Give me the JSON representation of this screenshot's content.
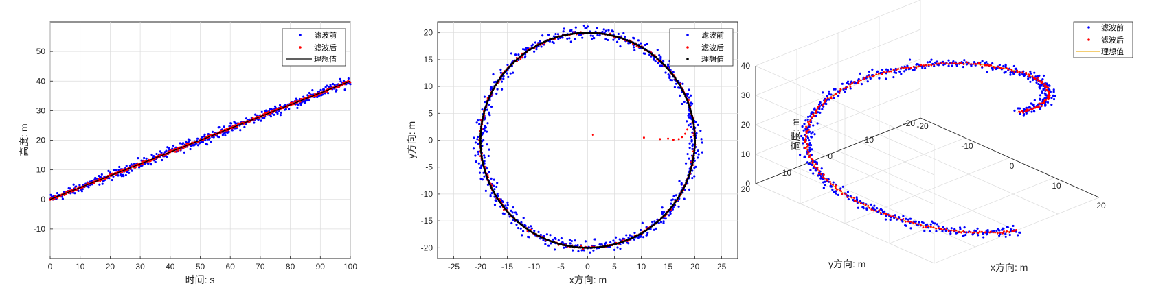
{
  "colors": {
    "before": "#0000ff",
    "after": "#ff0000",
    "ideal_line": "#000000",
    "ideal_3d": "#edb120",
    "axis": "#262626",
    "grid": "#dcdcdc"
  },
  "chart_data": [
    {
      "type": "scatter",
      "xlabel": "时间: s",
      "ylabel": "高度: m",
      "xlim": [
        0,
        100
      ],
      "ylim": [
        -20,
        60
      ],
      "xticks": [
        0,
        10,
        20,
        30,
        40,
        50,
        60,
        70,
        80,
        90,
        100
      ],
      "yticks": [
        -10,
        0,
        10,
        20,
        30,
        40,
        50
      ],
      "grid": true,
      "legend_position": "top-right",
      "legend": [
        "滤波前",
        "滤波后",
        "理想值"
      ],
      "series": [
        {
          "name": "滤波前",
          "style": "points",
          "color": "#0000ff",
          "x_range": [
            0,
            100
          ],
          "line": "y = 0.4·t",
          "noise_amplitude": 2.5,
          "count": 500
        },
        {
          "name": "滤波后",
          "style": "points",
          "color": "#ff0000",
          "x_range": [
            0,
            100
          ],
          "line": "y = 0.4·t",
          "noise_amplitude": 0.7,
          "count": 500
        },
        {
          "name": "理想值",
          "style": "line",
          "color": "#000000",
          "x": [
            0,
            100
          ],
          "y": [
            0,
            40
          ]
        }
      ]
    },
    {
      "type": "scatter",
      "xlabel": "x方向: m",
      "ylabel": "y方向: m",
      "xlim": [
        -28,
        28
      ],
      "ylim": [
        -22,
        22
      ],
      "xticks": [
        -25,
        -20,
        -15,
        -10,
        -5,
        0,
        5,
        10,
        15,
        20,
        25
      ],
      "yticks": [
        -20,
        -15,
        -10,
        -5,
        0,
        5,
        10,
        15,
        20
      ],
      "grid": true,
      "legend_position": "top-right",
      "legend": [
        "滤波前",
        "滤波后",
        "理想值"
      ],
      "series": [
        {
          "name": "滤波前",
          "style": "points",
          "color": "#0000ff",
          "shape": "circle",
          "radius": 20,
          "noise_amplitude": 1.8,
          "count": 600
        },
        {
          "name": "滤波后",
          "style": "points",
          "color": "#ff0000",
          "shape": "circle",
          "radius": 20,
          "noise_amplitude": 0.4,
          "count": 300,
          "transient_points": [
            [
              1,
              1
            ],
            [
              10.5,
              0.5
            ],
            [
              13.5,
              0.2
            ],
            [
              15,
              0.3
            ],
            [
              16,
              0.1
            ],
            [
              17,
              0.2
            ],
            [
              17.6,
              0.6
            ],
            [
              18.2,
              1.2
            ],
            [
              18.6,
              2.0
            ]
          ]
        },
        {
          "name": "理想值",
          "style": "points",
          "color": "#000000",
          "shape": "circle",
          "radius": 20,
          "count": 400
        }
      ]
    },
    {
      "type": "scatter3d",
      "xlabel": "x方向: m",
      "ylabel": "y方向: m",
      "zlabel": "高度: m",
      "xlim": [
        -20,
        20
      ],
      "ylim": [
        -20,
        20
      ],
      "zlim": [
        0,
        40
      ],
      "xticks": [
        -20,
        -10,
        0,
        10,
        20
      ],
      "yticks": [
        -20,
        -10,
        0,
        10,
        20
      ],
      "zticks": [
        0,
        10,
        20,
        30,
        40
      ],
      "grid": true,
      "legend_position": "top-right",
      "legend": [
        "滤波前",
        "滤波后",
        "理想值"
      ],
      "series": [
        {
          "name": "滤波前",
          "style": "points",
          "color": "#0000ff",
          "shape": "helix",
          "radius": 20,
          "z_range": [
            0,
            40
          ],
          "noise_amplitude": 1.8,
          "count": 600
        },
        {
          "name": "滤波后",
          "style": "points",
          "color": "#ff0000",
          "shape": "helix",
          "radius": 20,
          "z_range": [
            0,
            40
          ],
          "noise_amplitude": 0.5,
          "count": 300
        },
        {
          "name": "理想值",
          "style": "line",
          "color": "#edb120",
          "shape": "helix",
          "radius": 20,
          "z_range": [
            0,
            40
          ]
        }
      ]
    }
  ]
}
